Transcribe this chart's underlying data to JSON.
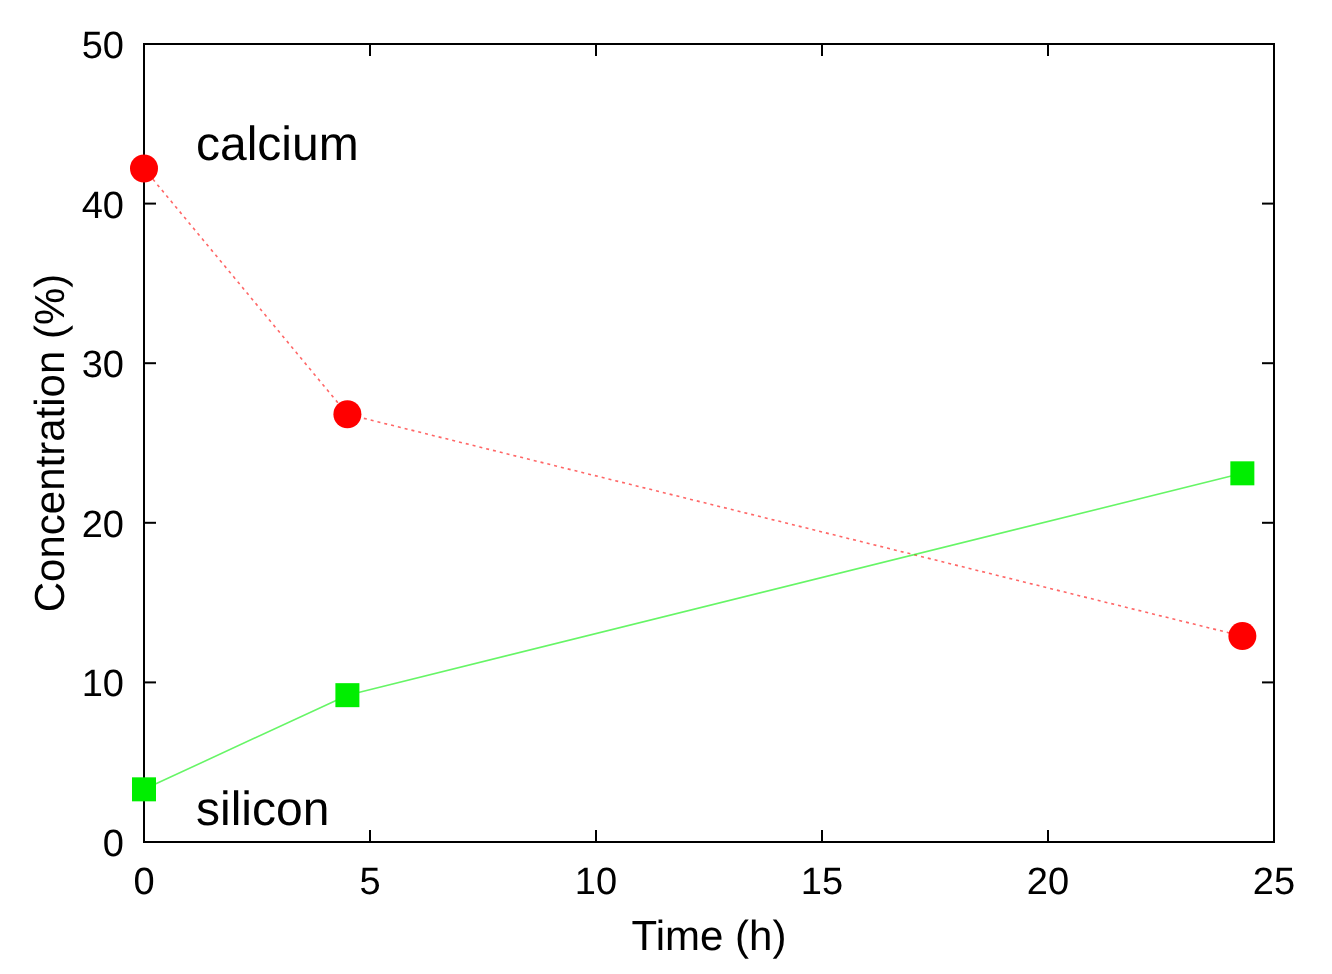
{
  "chart_data": {
    "type": "line",
    "xlabel": "Time  (h)",
    "ylabel": "Concentration  (%)",
    "xlim": [
      0,
      25
    ],
    "xticks": [
      0,
      5,
      10,
      15,
      20,
      25
    ],
    "ylim": [
      0,
      50
    ],
    "yticks": [
      0,
      10,
      20,
      30,
      40,
      50
    ],
    "grid": false,
    "series": [
      {
        "name": "calcium",
        "color": "#ff0000",
        "marker": "circle",
        "line_style": "dotted",
        "x": [
          0,
          4.5,
          24.3
        ],
        "values": [
          42.2,
          26.8,
          12.9
        ]
      },
      {
        "name": "silicon",
        "color": "#00ee00",
        "marker": "square",
        "line_style": "solid",
        "x": [
          0,
          4.5,
          24.3
        ],
        "values": [
          3.3,
          9.2,
          23.1
        ]
      }
    ]
  }
}
